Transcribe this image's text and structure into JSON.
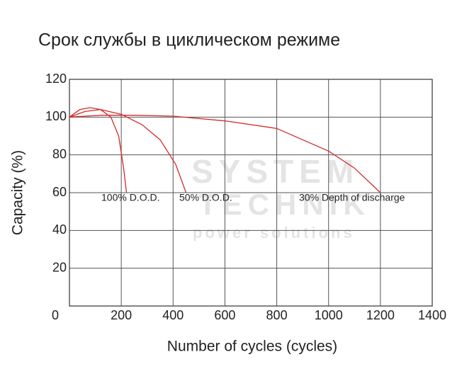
{
  "chart_data": {
    "type": "line",
    "title": "Срок службы в циклическом режиме",
    "x_label": "Number of cycles (cycles)",
    "y_label": "Capacity (%)",
    "watermark": [
      "SYSTEM",
      "TECHNIK",
      "power solutions"
    ],
    "xlim": [
      0,
      1400
    ],
    "xticks": [
      0,
      200,
      400,
      600,
      800,
      1000,
      1200,
      1400
    ],
    "ylim": [
      0,
      120
    ],
    "yticks": [
      20,
      40,
      60,
      80,
      100,
      120
    ],
    "grid": true,
    "series": [
      {
        "name": "100% D.O.D.",
        "color": "#d42a2a",
        "x": [
          0,
          40,
          80,
          120,
          160,
          190,
          210,
          220
        ],
        "values": [
          100,
          104,
          105,
          104,
          100,
          90,
          72,
          60
        ]
      },
      {
        "name": "50% D.O.D.",
        "color": "#d42a2a",
        "x": [
          0,
          60,
          120,
          200,
          280,
          350,
          410,
          450
        ],
        "values": [
          100,
          103,
          104,
          101.5,
          96,
          88,
          75,
          60
        ]
      },
      {
        "name": "30% Depth of discharge",
        "color": "#d42a2a",
        "x": [
          0,
          125,
          250,
          400,
          600,
          800,
          1000,
          1100,
          1200
        ],
        "values": [
          100,
          101,
          101,
          100.5,
          98,
          94,
          82,
          73,
          60
        ]
      }
    ]
  }
}
